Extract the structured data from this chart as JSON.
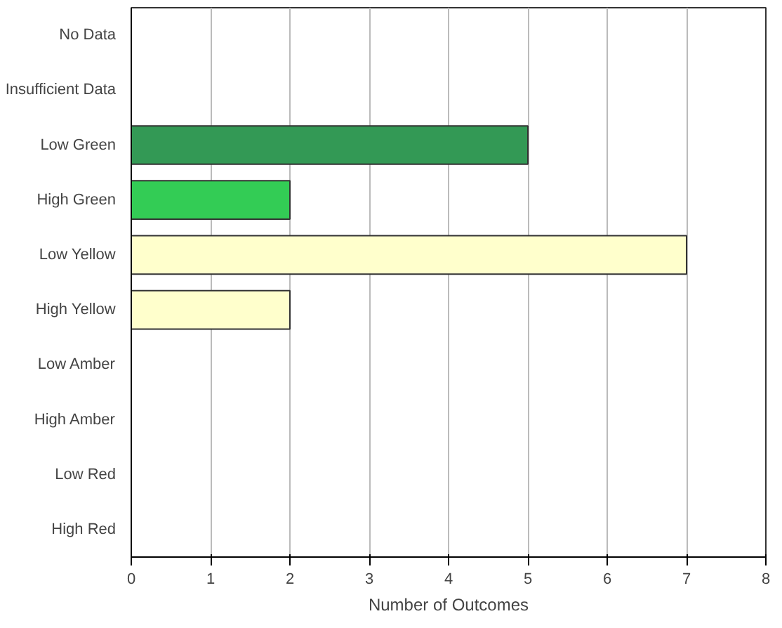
{
  "chart_data": {
    "type": "bar",
    "orientation": "horizontal",
    "xlabel": "Number of Outcomes",
    "categories": [
      "No Data",
      "Insufficient Data",
      "Low Green",
      "High Green",
      "Low Yellow",
      "High Yellow",
      "Low Amber",
      "High Amber",
      "Low Red",
      "High Red"
    ],
    "values": [
      0,
      0,
      5,
      2,
      7,
      2,
      0,
      0,
      0,
      0
    ],
    "colors": [
      null,
      null,
      "#339955",
      "#33cc55",
      "#ffffcc",
      "#ffffcc",
      null,
      null,
      null,
      null
    ],
    "xlim": [
      0,
      8
    ],
    "xticks": [
      0,
      1,
      2,
      3,
      4,
      5,
      6,
      7,
      8
    ],
    "grid": "x"
  }
}
